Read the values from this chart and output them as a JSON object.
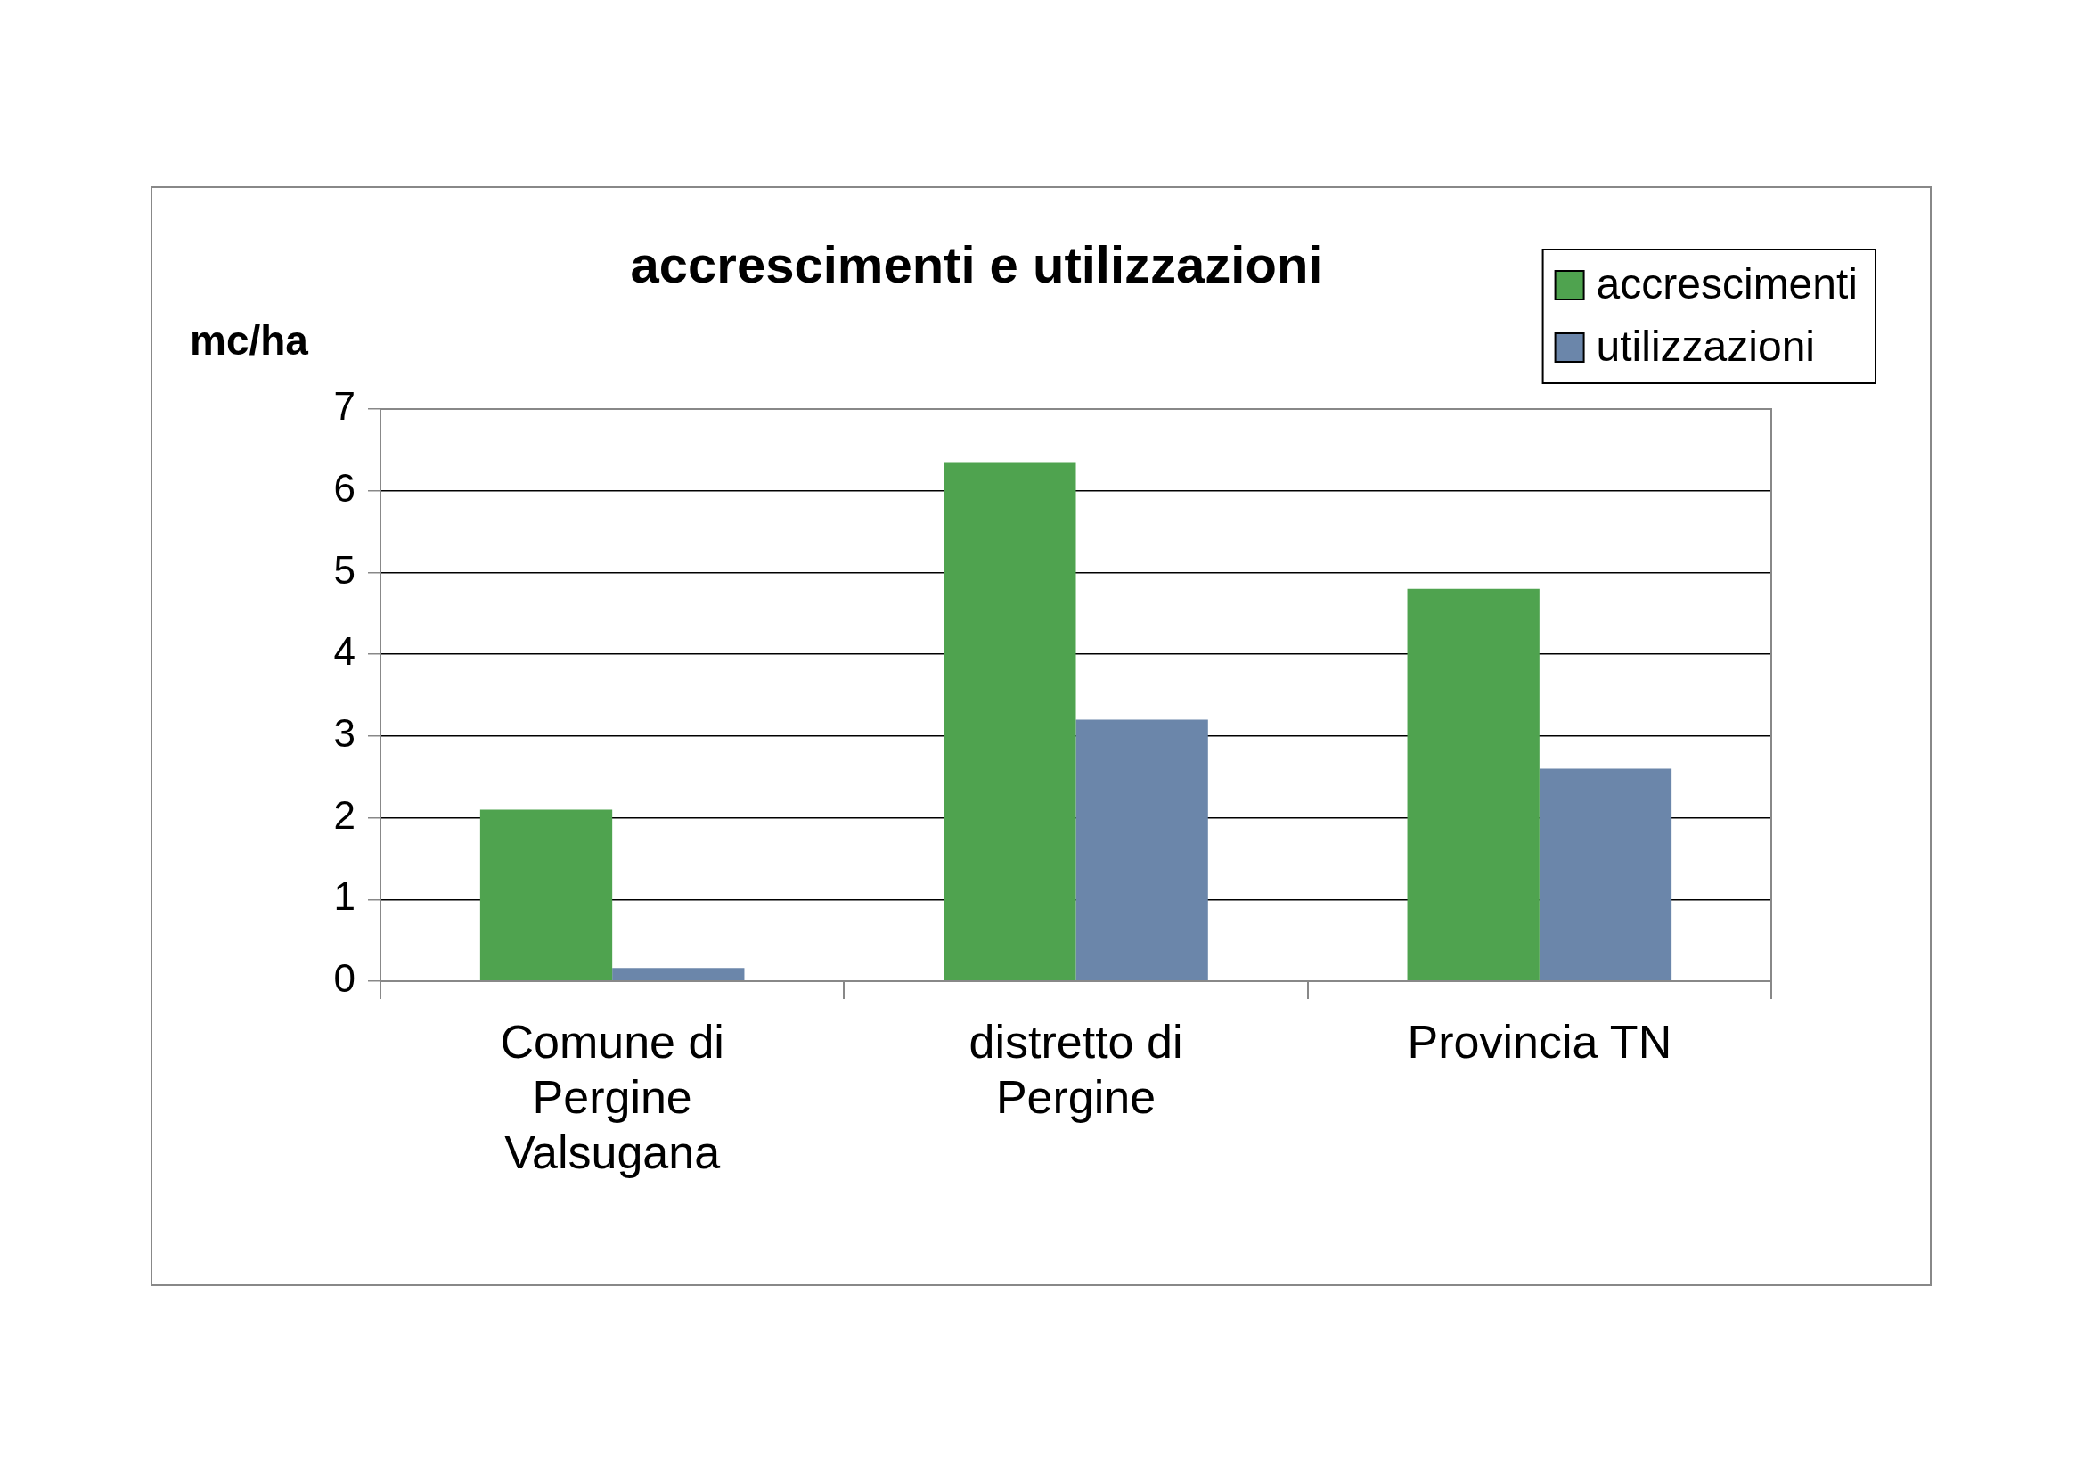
{
  "chart_data": {
    "type": "bar",
    "title": "accrescimenti e utilizzazioni",
    "ylabel": "mc/ha",
    "categories": [
      "Comune di Pergine Valsugana",
      "distretto di Pergine",
      "Provincia TN"
    ],
    "series": [
      {
        "name": "accrescimenti",
        "color": "#4fa34f",
        "values": [
          2.1,
          6.35,
          4.8
        ]
      },
      {
        "name": "utilizzazioni",
        "color": "#6b86aa",
        "values": [
          0.16,
          3.2,
          2.6
        ]
      }
    ],
    "ylim": [
      0,
      7
    ],
    "yticks": [
      0,
      1,
      2,
      3,
      4,
      5,
      6,
      7
    ],
    "grid": "y",
    "legend": "top right"
  }
}
